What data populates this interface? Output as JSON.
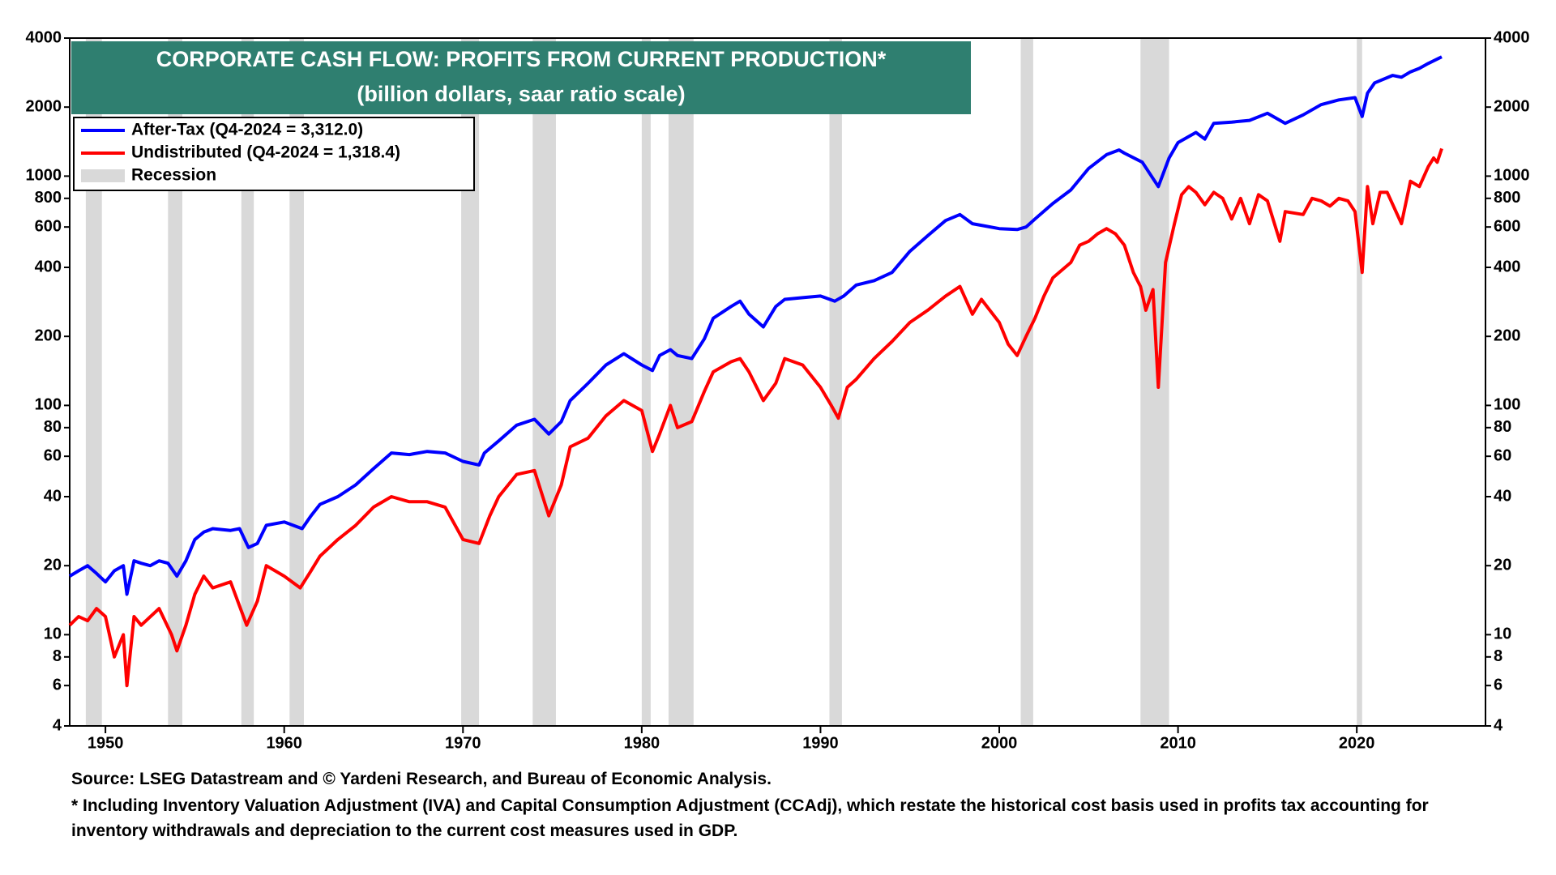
{
  "chart_data": {
    "type": "line",
    "title": "CORPORATE CASH FLOW: PROFITS FROM CURRENT PRODUCTION*",
    "subtitle": "(billion dollars, saar ratio scale)",
    "source": "Source: LSEG Datastream and © Yardeni Research, and Bureau of Economic Analysis.",
    "note": "* Including Inventory Valuation Adjustment (IVA) and Capital Consumption Adjustment (CCAdj), which restate the historical cost basis used in profits tax accounting for inventory withdrawals and depreciation to the current cost measures used in GDP.",
    "log_scale": true,
    "xlim": [
      1948,
      2027.2
    ],
    "xticks": [
      1950,
      1960,
      1970,
      1980,
      1990,
      2000,
      2010,
      2020
    ],
    "ylim": [
      4,
      4000
    ],
    "yticks": [
      4,
      6,
      8,
      10,
      20,
      40,
      60,
      80,
      100,
      200,
      400,
      600,
      800,
      1000,
      2000,
      4000
    ],
    "legend": "upper left",
    "recession_label": "Recession",
    "recession_color": "#d9d9d9",
    "recessions": [
      [
        1948.9,
        1949.8
      ],
      [
        1953.5,
        1954.3
      ],
      [
        1957.6,
        1958.3
      ],
      [
        1960.3,
        1961.1
      ],
      [
        1969.9,
        1970.9
      ],
      [
        1973.9,
        1975.2
      ],
      [
        1980.0,
        1980.5
      ],
      [
        1981.5,
        1982.9
      ],
      [
        1990.5,
        1991.2
      ],
      [
        2001.2,
        2001.9
      ],
      [
        2007.9,
        2009.5
      ],
      [
        2020.0,
        2020.3
      ]
    ],
    "series": [
      {
        "name": "After-Tax (Q4-2024 = 3,312.0)",
        "color": "#0000ff",
        "x": [
          1948,
          1948.5,
          1949,
          1949.5,
          1950,
          1950.5,
          1951,
          1951.2,
          1951.6,
          1952,
          1952.5,
          1953,
          1953.5,
          1954,
          1954.5,
          1955,
          1955.5,
          1956,
          1957,
          1957.5,
          1958,
          1958.5,
          1959,
          1960,
          1961,
          1961.5,
          1962,
          1963,
          1964,
          1965,
          1966,
          1967,
          1968,
          1969,
          1970,
          1970.9,
          1971.2,
          1972,
          1973,
          1974,
          1974.8,
          1975.5,
          1976,
          1977,
          1978,
          1979,
          1980,
          1980.6,
          1981,
          1981.6,
          1982,
          1982.8,
          1983.5,
          1984,
          1985,
          1985.5,
          1986,
          1986.8,
          1987.5,
          1988,
          1989,
          1990,
          1990.8,
          1991.3,
          1992,
          1993,
          1994,
          1995,
          1996,
          1997,
          1997.8,
          1998.5,
          1999,
          2000,
          2001,
          2001.5,
          2002,
          2003,
          2004,
          2005,
          2006,
          2006.7,
          2007,
          2008,
          2008.9,
          2009.5,
          2010,
          2011,
          2011.5,
          2012,
          2013,
          2014,
          2015,
          2016,
          2017,
          2018,
          2019,
          2019.9,
          2020.3,
          2020.6,
          2021,
          2022,
          2022.5,
          2023,
          2023.5,
          2024,
          2024.75
        ],
        "values": [
          18,
          19,
          20,
          18.5,
          17,
          19,
          20,
          15,
          21,
          20.5,
          20,
          21,
          20.5,
          18,
          21,
          26,
          28,
          29,
          28.5,
          29,
          24,
          25,
          30,
          31,
          29,
          33,
          37,
          40,
          45,
          53,
          62,
          61,
          63,
          62,
          57,
          55,
          62,
          70,
          82,
          87,
          75,
          85,
          105,
          125,
          150,
          168,
          150,
          142,
          165,
          175,
          165,
          160,
          195,
          240,
          270,
          285,
          250,
          220,
          270,
          290,
          295,
          300,
          285,
          300,
          335,
          350,
          380,
          470,
          550,
          640,
          680,
          620,
          610,
          590,
          585,
          600,
          650,
          760,
          870,
          1080,
          1240,
          1300,
          1260,
          1150,
          900,
          1200,
          1400,
          1550,
          1450,
          1700,
          1720,
          1750,
          1880,
          1700,
          1850,
          2050,
          2150,
          2200,
          1820,
          2300,
          2550,
          2750,
          2700,
          2850,
          2950,
          3100,
          3312
        ]
      },
      {
        "name": "Undistributed (Q4-2024 = 1,318.4)",
        "color": "#ff0000",
        "x": [
          1948,
          1948.5,
          1949,
          1949.5,
          1950,
          1950.5,
          1951,
          1951.2,
          1951.6,
          1952,
          1953,
          1953.7,
          1954,
          1954.5,
          1955,
          1955.5,
          1956,
          1957,
          1957.9,
          1958.5,
          1959,
          1960,
          1960.9,
          1961.5,
          1962,
          1963,
          1964,
          1965,
          1966,
          1967,
          1968,
          1969,
          1970,
          1970.9,
          1971.5,
          1972,
          1973,
          1974,
          1974.8,
          1975.5,
          1976,
          1977,
          1978,
          1979,
          1980,
          1980.6,
          1981,
          1981.6,
          1982,
          1982.8,
          1983.5,
          1984,
          1985,
          1985.5,
          1986,
          1986.8,
          1987.5,
          1988,
          1989,
          1990,
          1990.6,
          1991,
          1991.5,
          1992,
          1993,
          1994,
          1995,
          1996,
          1997,
          1997.8,
          1998.5,
          1999,
          2000,
          2000.5,
          2001,
          2001.5,
          2002,
          2002.5,
          2003,
          2004,
          2004.5,
          2005,
          2005.5,
          2006,
          2006.5,
          2007,
          2007.5,
          2007.9,
          2008.2,
          2008.6,
          2008.9,
          2009.3,
          2009.8,
          2010.2,
          2010.6,
          2011,
          2011.5,
          2012,
          2012.5,
          2013,
          2013.5,
          2014,
          2014.5,
          2015,
          2015.7,
          2016,
          2017,
          2017.5,
          2018,
          2018.5,
          2019,
          2019.5,
          2019.9,
          2020.3,
          2020.6,
          2020.9,
          2021.3,
          2021.7,
          2022.5,
          2023,
          2023.5,
          2024,
          2024.3,
          2024.5,
          2024.75
        ],
        "values": [
          11,
          12,
          11.5,
          13,
          12,
          8,
          10,
          6,
          12,
          11,
          13,
          10,
          8.5,
          11,
          15,
          18,
          16,
          17,
          11,
          14,
          20,
          18,
          16,
          19,
          22,
          26,
          30,
          36,
          40,
          38,
          38,
          36,
          26,
          25,
          33,
          40,
          50,
          52,
          33,
          45,
          66,
          72,
          90,
          105,
          95,
          63,
          75,
          100,
          80,
          85,
          115,
          140,
          155,
          160,
          140,
          105,
          125,
          160,
          150,
          120,
          100,
          88,
          120,
          130,
          160,
          190,
          230,
          260,
          300,
          330,
          250,
          290,
          230,
          185,
          165,
          200,
          240,
          300,
          360,
          420,
          500,
          520,
          560,
          590,
          560,
          500,
          380,
          330,
          260,
          320,
          120,
          420,
          620,
          830,
          900,
          850,
          750,
          850,
          800,
          650,
          800,
          620,
          830,
          780,
          520,
          700,
          680,
          800,
          780,
          740,
          800,
          780,
          700,
          380,
          900,
          620,
          850,
          850,
          620,
          950,
          900,
          1100,
          1200,
          1150,
          1318.4
        ]
      }
    ]
  }
}
